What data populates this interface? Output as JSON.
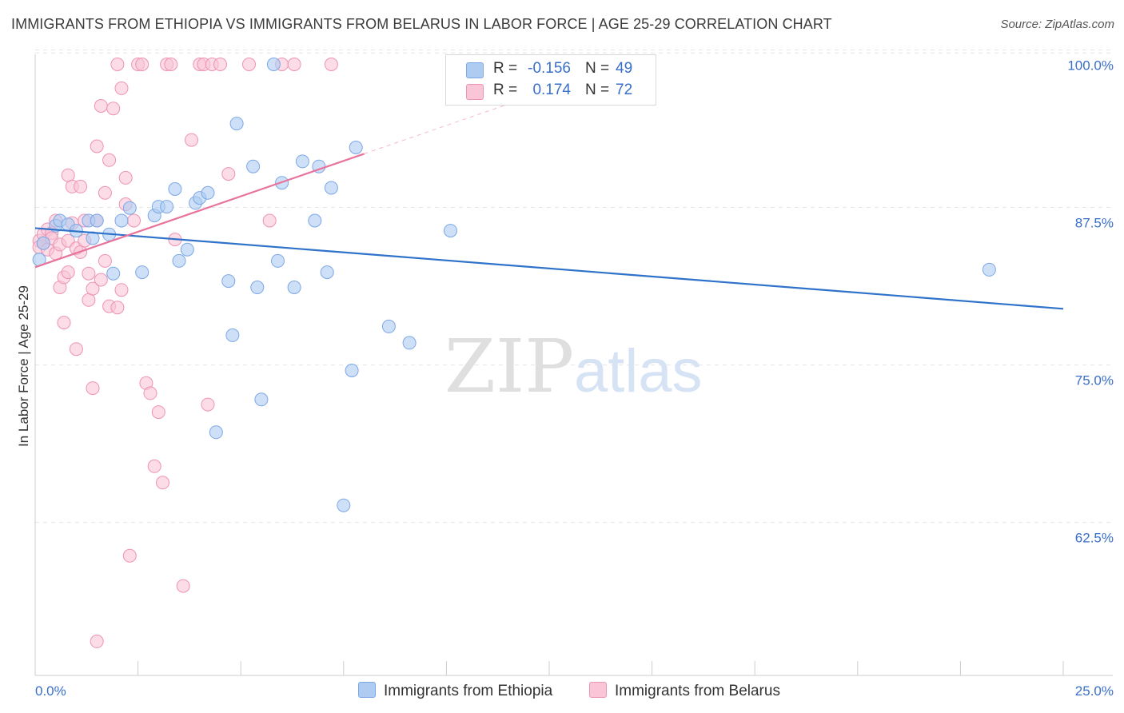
{
  "title": "IMMIGRANTS FROM ETHIOPIA VS IMMIGRANTS FROM BELARUS IN LABOR FORCE | AGE 25-29 CORRELATION CHART",
  "source": "Source: ZipAtlas.com",
  "watermark": {
    "zip": "ZIP",
    "atlas": "atlas"
  },
  "legend": {
    "r_label": "R =",
    "n_label": "N =",
    "series": [
      {
        "name": "Immigrants from Ethiopia",
        "r": "-0.156",
        "n": "49",
        "color": "#aecbf2",
        "stroke": "#7ca7e6",
        "line": "#2f72c9"
      },
      {
        "name": "Immigrants from Belarus",
        "r": "0.174",
        "n": "72",
        "color": "#f9c5d7",
        "stroke": "#ee93b3",
        "line": "#e8739c"
      }
    ]
  },
  "chart_data": {
    "type": "scatter",
    "title": "IMMIGRANTS FROM ETHIOPIA VS IMMIGRANTS FROM BELARUS IN LABOR FORCE | AGE 25-29 CORRELATION CHART",
    "xlabel": "",
    "ylabel": "In Labor Force | Age 25-29",
    "xlim": [
      0,
      25
    ],
    "ylim": [
      51.5,
      101.3
    ],
    "x_tick_labels": [
      "0.0%",
      "25.0%"
    ],
    "y_ticks": [
      62.5,
      75.0,
      87.5,
      100.0
    ],
    "y_tick_labels": [
      "62.5%",
      "75.0%",
      "87.5%",
      "100.0%"
    ],
    "grid": true,
    "legend_position": "top-center",
    "series": [
      {
        "name": "Immigrants from Ethiopia",
        "trend": {
          "x": [
            0.0,
            25.0
          ],
          "y": [
            87.0,
            80.6
          ]
        },
        "points": [
          [
            0.1,
            84.5
          ],
          [
            0.2,
            85.8
          ],
          [
            0.5,
            87.2
          ],
          [
            0.6,
            87.6
          ],
          [
            0.8,
            87.3
          ],
          [
            1.0,
            86.8
          ],
          [
            1.3,
            87.6
          ],
          [
            1.4,
            86.2
          ],
          [
            1.5,
            87.6
          ],
          [
            1.8,
            86.5
          ],
          [
            1.9,
            83.4
          ],
          [
            2.1,
            87.6
          ],
          [
            2.3,
            88.6
          ],
          [
            2.6,
            83.5
          ],
          [
            2.9,
            88.0
          ],
          [
            3.0,
            88.7
          ],
          [
            3.2,
            88.7
          ],
          [
            3.4,
            90.1
          ],
          [
            3.5,
            84.4
          ],
          [
            3.7,
            85.3
          ],
          [
            3.9,
            89.0
          ],
          [
            4.0,
            89.4
          ],
          [
            4.2,
            89.8
          ],
          [
            4.4,
            70.8
          ],
          [
            4.7,
            82.8
          ],
          [
            4.8,
            78.5
          ],
          [
            4.9,
            95.3
          ],
          [
            5.3,
            91.9
          ],
          [
            5.4,
            82.3
          ],
          [
            5.5,
            73.4
          ],
          [
            5.8,
            100.0
          ],
          [
            5.9,
            84.4
          ],
          [
            6.0,
            90.6
          ],
          [
            6.3,
            82.3
          ],
          [
            6.5,
            92.3
          ],
          [
            6.8,
            87.6
          ],
          [
            6.9,
            91.9
          ],
          [
            7.1,
            83.5
          ],
          [
            7.2,
            90.2
          ],
          [
            7.5,
            65.0
          ],
          [
            7.7,
            75.7
          ],
          [
            7.8,
            93.4
          ],
          [
            8.6,
            79.2
          ],
          [
            9.1,
            77.9
          ],
          [
            10.1,
            86.8
          ],
          [
            23.2,
            83.7
          ]
        ]
      },
      {
        "name": "Immigrants from Belarus",
        "trend": {
          "x": [
            0.0,
            8.0
          ],
          "y": [
            83.9,
            92.9
          ]
        },
        "trend_extension": {
          "x": [
            8.0,
            12.0
          ],
          "y": [
            92.9,
            97.4
          ]
        },
        "points": [
          [
            0.1,
            86.0
          ],
          [
            0.1,
            85.5
          ],
          [
            0.2,
            86.5
          ],
          [
            0.2,
            85.8
          ],
          [
            0.3,
            86.9
          ],
          [
            0.3,
            85.3
          ],
          [
            0.4,
            86.6
          ],
          [
            0.4,
            86.2
          ],
          [
            0.5,
            85.0
          ],
          [
            0.5,
            87.6
          ],
          [
            0.6,
            85.7
          ],
          [
            0.6,
            82.3
          ],
          [
            0.7,
            83.1
          ],
          [
            0.7,
            79.5
          ],
          [
            0.8,
            83.5
          ],
          [
            0.8,
            86.0
          ],
          [
            0.8,
            91.2
          ],
          [
            0.9,
            90.3
          ],
          [
            0.9,
            87.4
          ],
          [
            1.0,
            85.4
          ],
          [
            1.0,
            77.4
          ],
          [
            1.1,
            90.3
          ],
          [
            1.1,
            85.1
          ],
          [
            1.2,
            87.6
          ],
          [
            1.2,
            86.0
          ],
          [
            1.3,
            83.4
          ],
          [
            1.3,
            81.3
          ],
          [
            1.4,
            82.2
          ],
          [
            1.4,
            74.3
          ],
          [
            1.5,
            87.6
          ],
          [
            1.5,
            93.5
          ],
          [
            1.6,
            96.7
          ],
          [
            1.6,
            82.9
          ],
          [
            1.7,
            89.8
          ],
          [
            1.7,
            84.4
          ],
          [
            1.8,
            92.4
          ],
          [
            1.8,
            80.8
          ],
          [
            1.9,
            96.5
          ],
          [
            2.0,
            80.7
          ],
          [
            2.0,
            100.0
          ],
          [
            2.1,
            98.1
          ],
          [
            2.1,
            82.1
          ],
          [
            2.2,
            91.0
          ],
          [
            2.2,
            88.9
          ],
          [
            2.3,
            61.0
          ],
          [
            2.4,
            87.6
          ],
          [
            2.5,
            100.0
          ],
          [
            2.6,
            100.0
          ],
          [
            2.7,
            74.7
          ],
          [
            2.8,
            73.9
          ],
          [
            2.9,
            68.1
          ],
          [
            3.0,
            72.4
          ],
          [
            3.1,
            66.8
          ],
          [
            3.2,
            100.0
          ],
          [
            3.3,
            100.0
          ],
          [
            3.4,
            86.1
          ],
          [
            3.6,
            58.6
          ],
          [
            3.8,
            94.0
          ],
          [
            4.0,
            100.0
          ],
          [
            4.1,
            100.0
          ],
          [
            4.2,
            73.0
          ],
          [
            4.3,
            100.0
          ],
          [
            4.5,
            100.0
          ],
          [
            4.7,
            91.3
          ],
          [
            5.2,
            100.0
          ],
          [
            5.7,
            87.6
          ],
          [
            6.0,
            100.0
          ],
          [
            6.3,
            100.0
          ],
          [
            7.2,
            100.0
          ],
          [
            1.5,
            54.2
          ]
        ]
      }
    ]
  }
}
